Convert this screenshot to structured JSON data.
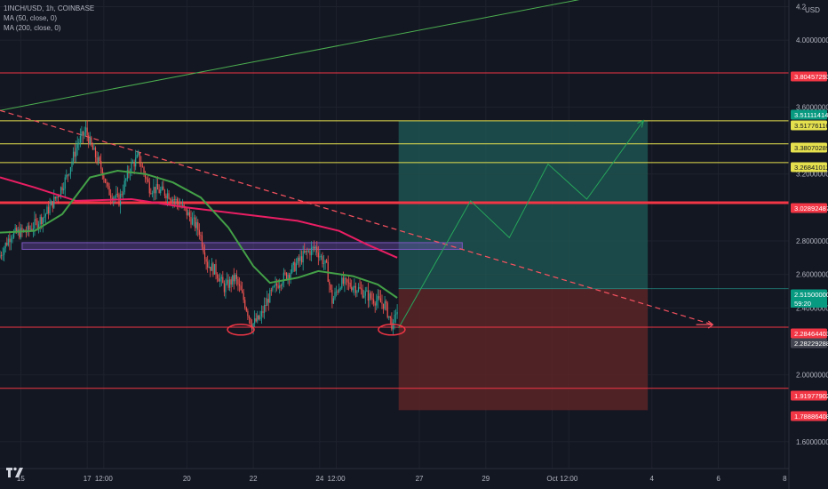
{
  "header": {
    "symbol_line": "1INCH/USD, 1h, COINBASE",
    "ma1_label": "MA (50, close, 0)",
    "ma2_label": "MA (200, close, 0)"
  },
  "colors": {
    "background": "#131722",
    "grid": "#1e222d",
    "up": "#26a69a",
    "down": "#ef5350",
    "ma50": "#43a047",
    "ma200": "#e91e63",
    "level_red": "#f23645",
    "level_yellow": "#e5e04d",
    "channel_green": "#4caf50",
    "zone_purple": "#7e57c2",
    "profit_zone": "#1f5a55",
    "loss_zone": "#5b2427",
    "projection": "#26a65b"
  },
  "chart_data": {
    "type": "candlestick",
    "title": "",
    "xlabel": "",
    "ylabel": "",
    "ylim": [
      1.44,
      4.24
    ],
    "x_unit": "hours from 15 Sep 00:00",
    "currency_label": "USD",
    "y_ticks": [
      {
        "value": 4.2,
        "label": "4.2"
      },
      {
        "value": 4.0,
        "label": "4.00000000"
      },
      {
        "value": 3.6,
        "label": "3.60000000"
      },
      {
        "value": 3.2,
        "label": "3.20000000"
      },
      {
        "value": 2.8,
        "label": "2.80000000"
      },
      {
        "value": 2.6,
        "label": "2.60000000"
      },
      {
        "value": 2.4,
        "label": "2.40000000"
      },
      {
        "value": 2.0,
        "label": "2.00000000"
      },
      {
        "value": 1.6,
        "label": "1.60000000"
      }
    ],
    "x_ticks": [
      {
        "t": 0,
        "label": "15"
      },
      {
        "t": 48,
        "label": "17"
      },
      {
        "t": 60,
        "label": "12:00"
      },
      {
        "t": 120,
        "label": "20"
      },
      {
        "t": 168,
        "label": "22"
      },
      {
        "t": 216,
        "label": "24"
      },
      {
        "t": 228,
        "label": "12:00"
      },
      {
        "t": 288,
        "label": "27"
      },
      {
        "t": 336,
        "label": "29"
      },
      {
        "t": 384,
        "label": "Oct"
      },
      {
        "t": 396,
        "label": "12:00"
      },
      {
        "t": 456,
        "label": "4"
      },
      {
        "t": 504,
        "label": "6"
      },
      {
        "t": 552,
        "label": "8"
      }
    ],
    "price_levels": [
      {
        "value": 3.80457293,
        "label": "3.80457293",
        "kind": "red"
      },
      {
        "value": 3.51111414,
        "label": "3.51111414",
        "kind": "green"
      },
      {
        "value": 3.51776116,
        "label": "3.51776116",
        "kind": "yellow"
      },
      {
        "value": 3.38070289,
        "label": "3.38070289",
        "kind": "yellow"
      },
      {
        "value": 3.26841012,
        "label": "3.26841012",
        "kind": "yellow"
      },
      {
        "value": 3.02892487,
        "label": "3.02892487",
        "kind": "red"
      },
      {
        "value": 2.515,
        "label": "2.51500000",
        "kind": "teal"
      },
      {
        "value": 2.28464403,
        "label": "2.28464403",
        "kind": "red"
      },
      {
        "value": 2.28229288,
        "label": "2.28229288",
        "kind": "gray"
      },
      {
        "value": 1.91977902,
        "label": "1.91977902",
        "kind": "red"
      },
      {
        "value": 1.78886408,
        "label": "1.78886408",
        "kind": "red"
      }
    ],
    "countdown_label": "59:20",
    "ohlc_anchors": [
      [
        -15,
        2.7
      ],
      [
        -6,
        2.84
      ],
      [
        6,
        2.86
      ],
      [
        18,
        2.95
      ],
      [
        28,
        3.08
      ],
      [
        34,
        3.18
      ],
      [
        42,
        3.38
      ],
      [
        48,
        3.46
      ],
      [
        52,
        3.36
      ],
      [
        60,
        3.22
      ],
      [
        64,
        3.1
      ],
      [
        72,
        3.04
      ],
      [
        80,
        3.24
      ],
      [
        86,
        3.3
      ],
      [
        94,
        3.12
      ],
      [
        108,
        3.08
      ],
      [
        120,
        2.98
      ],
      [
        130,
        2.86
      ],
      [
        136,
        2.66
      ],
      [
        142,
        2.62
      ],
      [
        148,
        2.52
      ],
      [
        156,
        2.58
      ],
      [
        162,
        2.45
      ],
      [
        168,
        2.3
      ],
      [
        174,
        2.34
      ],
      [
        180,
        2.46
      ],
      [
        188,
        2.56
      ],
      [
        196,
        2.62
      ],
      [
        206,
        2.72
      ],
      [
        214,
        2.76
      ],
      [
        222,
        2.64
      ],
      [
        226,
        2.44
      ],
      [
        232,
        2.55
      ],
      [
        242,
        2.53
      ],
      [
        254,
        2.46
      ],
      [
        264,
        2.42
      ],
      [
        270,
        2.28
      ],
      [
        272,
        2.38
      ]
    ],
    "ma50_points": [
      [
        -15,
        2.85
      ],
      [
        10,
        2.86
      ],
      [
        30,
        2.96
      ],
      [
        50,
        3.18
      ],
      [
        70,
        3.22
      ],
      [
        90,
        3.2
      ],
      [
        110,
        3.15
      ],
      [
        130,
        3.06
      ],
      [
        150,
        2.88
      ],
      [
        168,
        2.65
      ],
      [
        180,
        2.55
      ],
      [
        200,
        2.58
      ],
      [
        215,
        2.62
      ],
      [
        240,
        2.59
      ],
      [
        258,
        2.54
      ],
      [
        272,
        2.46
      ]
    ],
    "ma200_points": [
      [
        -15,
        3.18
      ],
      [
        10,
        3.12
      ],
      [
        40,
        3.04
      ],
      [
        80,
        3.05
      ],
      [
        120,
        3.0
      ],
      [
        160,
        2.96
      ],
      [
        200,
        2.92
      ],
      [
        230,
        2.86
      ],
      [
        250,
        2.78
      ],
      [
        272,
        2.7
      ]
    ],
    "green_channel_line": {
      "from": [
        -15,
        3.58
      ],
      "to": [
        440,
        4.3
      ]
    },
    "dashed_trendline": {
      "from": [
        -15,
        3.58
      ],
      "to": [
        500,
        2.3
      ]
    },
    "resistance_zone": {
      "t0": 1,
      "t1": 319,
      "low": 2.75,
      "high": 2.79
    },
    "position": {
      "entry": 2.515,
      "target": 3.51776116,
      "stop": 1.78886408,
      "t0": 273,
      "t1": 453
    },
    "projection_path": [
      [
        273,
        2.28
      ],
      [
        325,
        3.04
      ],
      [
        353,
        2.82
      ],
      [
        381,
        3.26
      ],
      [
        409,
        3.05
      ],
      [
        450,
        3.52
      ]
    ],
    "projection_arrow": [
      [
        488,
        2.3
      ],
      [
        500,
        2.3
      ]
    ],
    "ellipses": [
      {
        "t": 159,
        "value": 2.27
      },
      {
        "t": 268,
        "value": 2.27
      }
    ],
    "last_price": 2.515
  }
}
